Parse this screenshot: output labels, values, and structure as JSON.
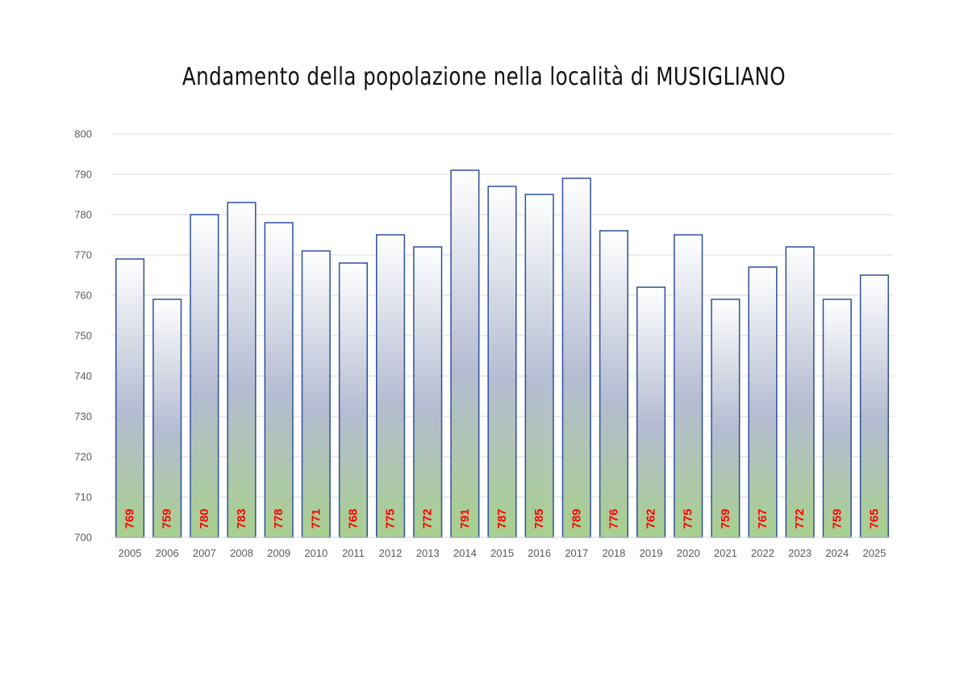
{
  "chart_data": {
    "type": "bar",
    "title": "Andamento della popolazione nella località di MUSIGLIANO",
    "categories": [
      "2005",
      "2006",
      "2007",
      "2008",
      "2009",
      "2010",
      "2011",
      "2012",
      "2013",
      "2014",
      "2015",
      "2016",
      "2017",
      "2018",
      "2019",
      "2020",
      "2021",
      "2022",
      "2023",
      "2024",
      "2025"
    ],
    "values": [
      769,
      759,
      780,
      783,
      778,
      771,
      768,
      775,
      772,
      791,
      787,
      785,
      789,
      776,
      762,
      775,
      759,
      767,
      772,
      759,
      765
    ],
    "ylim": [
      700,
      800
    ],
    "yticks": [
      700,
      710,
      720,
      730,
      740,
      750,
      760,
      770,
      780,
      790,
      800
    ],
    "grid": true,
    "legend": "none",
    "data_labels": true,
    "colors": {
      "bar_border": "#2f4f9a",
      "bar_top": "#ffffff",
      "bar_mid": "#b4bcd2",
      "bar_bottom": "#a8d08d",
      "data_label": "#ff0000",
      "gridline": "#d9d9d9",
      "tick_text": "#595959"
    }
  }
}
